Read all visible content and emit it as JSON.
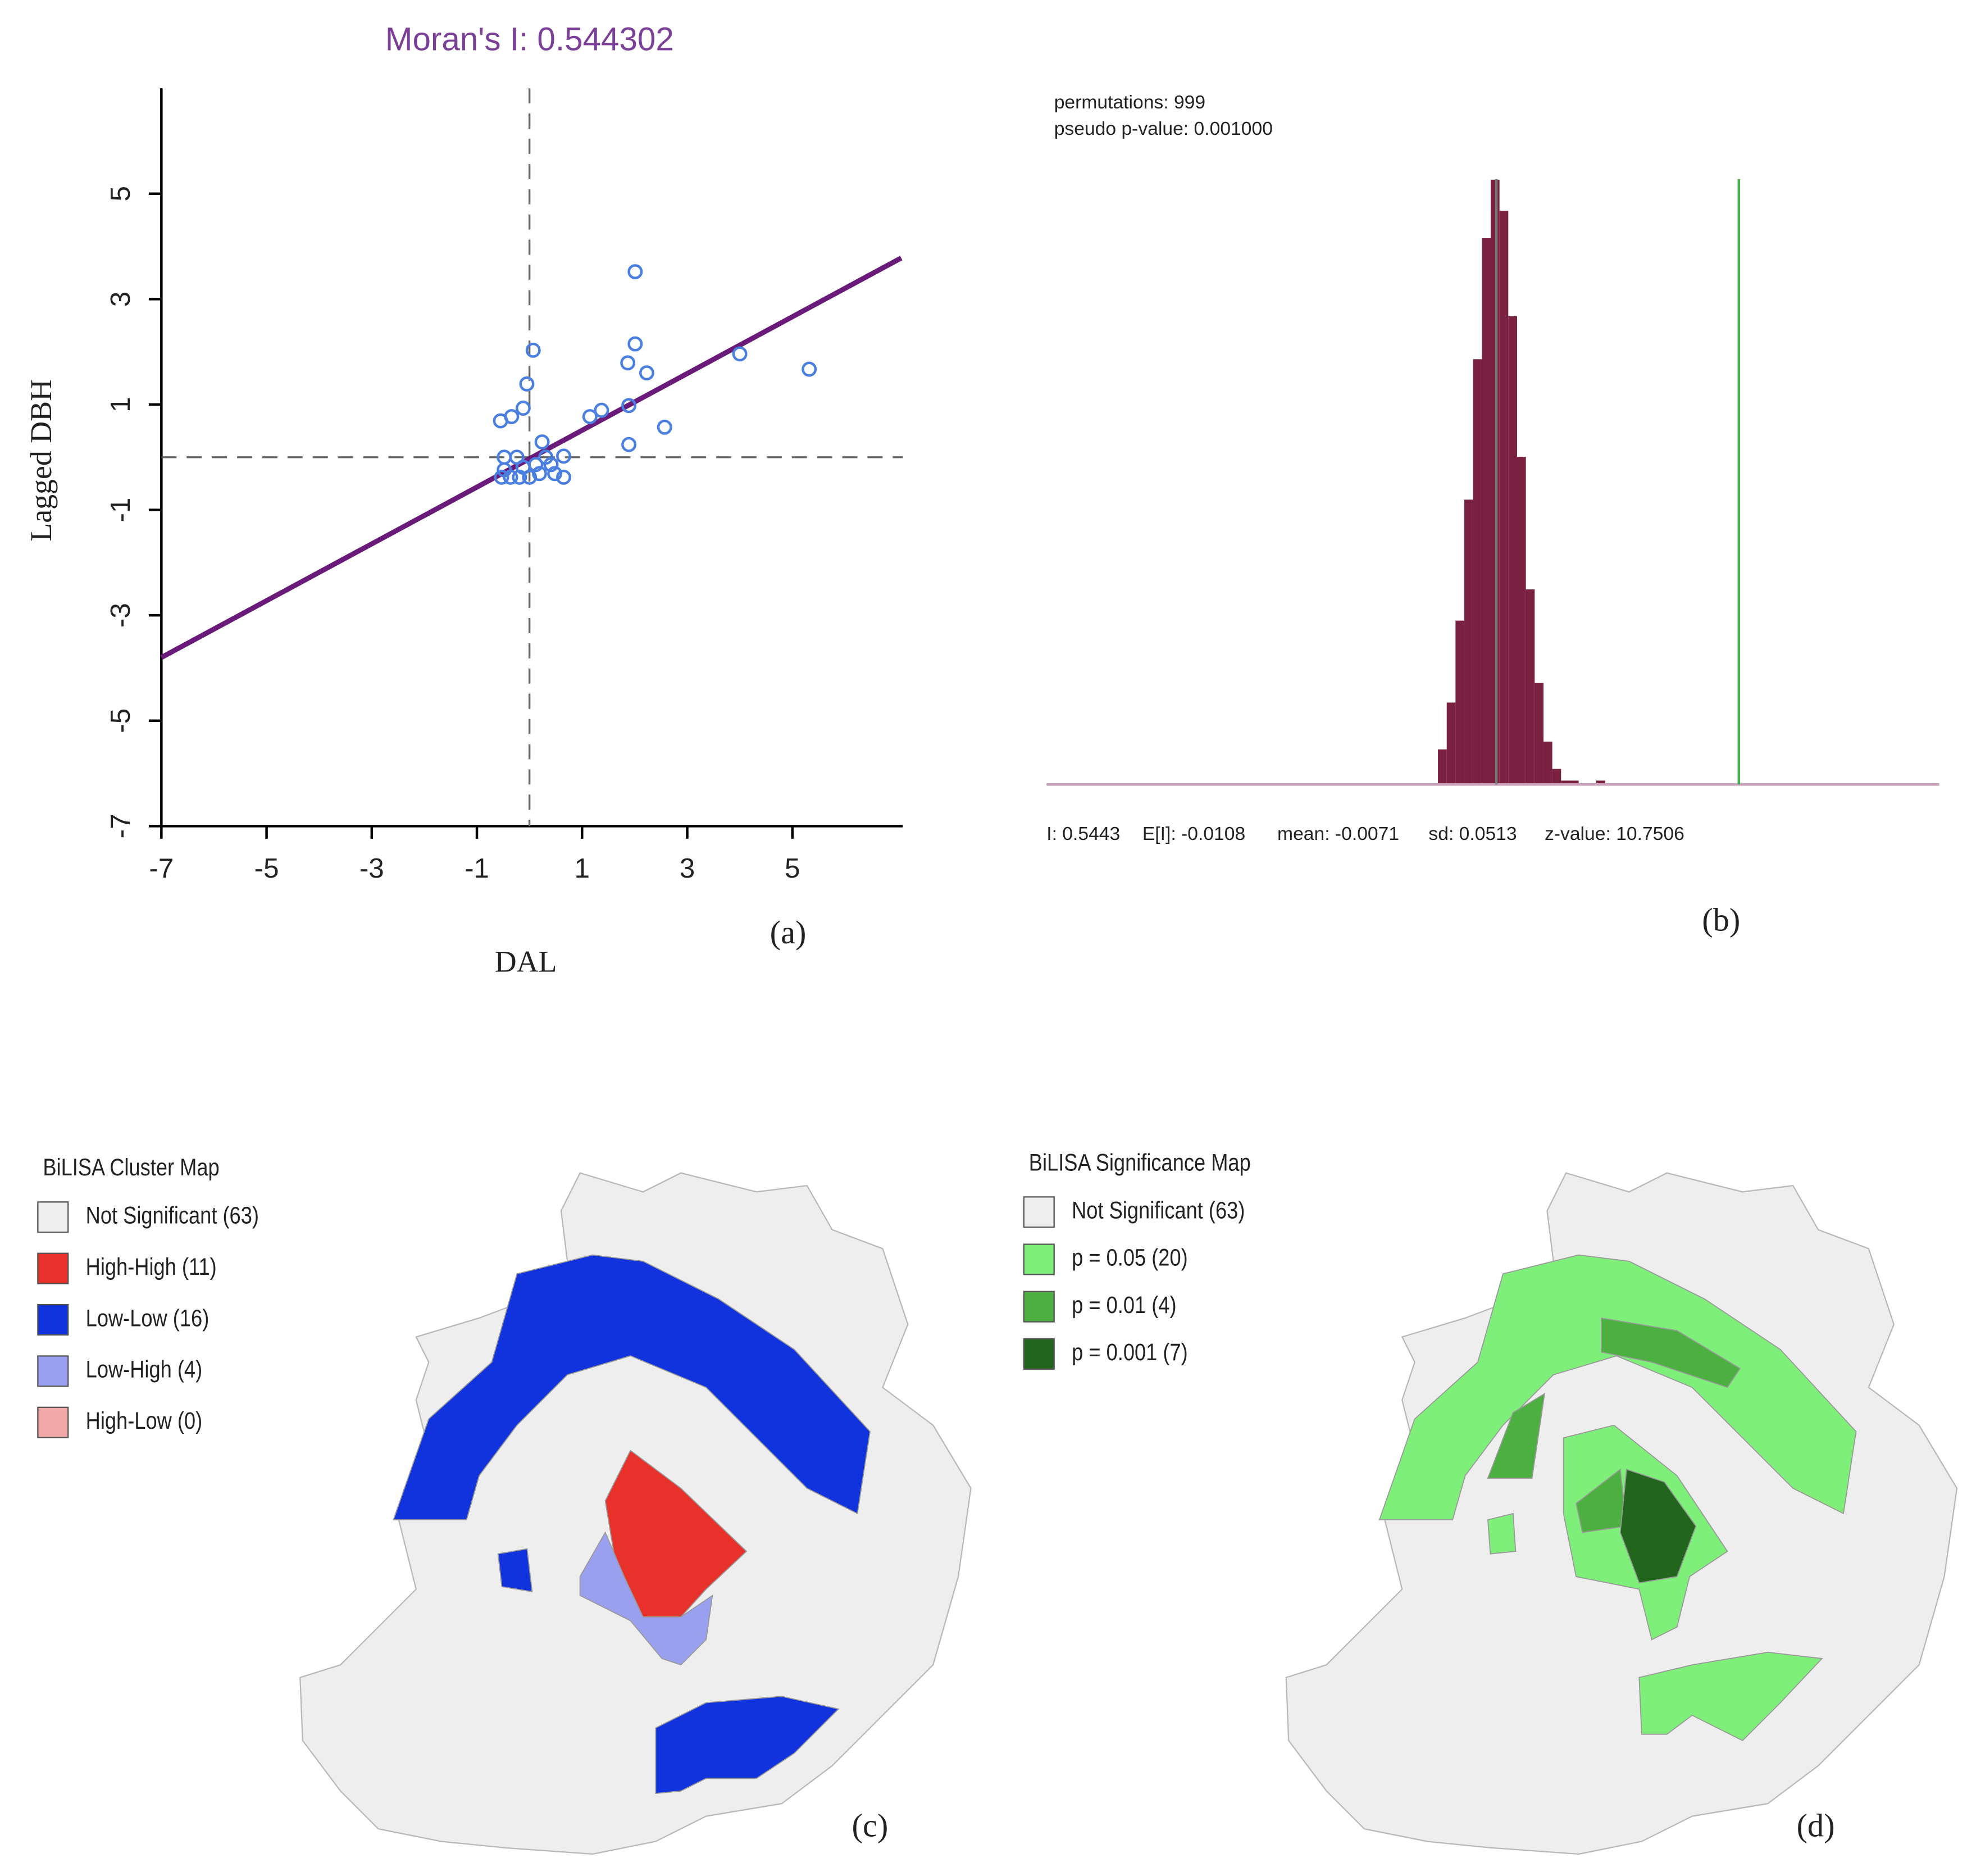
{
  "chart_data": [
    {
      "type": "scatter",
      "title": "Moran's I: 0.544302",
      "title_color": "#7b3f98",
      "xlabel": "DAL",
      "ylabel": "Lagged DBH",
      "panel_label": "(a)",
      "xlim": [
        -7,
        7.1
      ],
      "ylim": [
        -7,
        7
      ],
      "xticks": [
        -7,
        -5,
        -3,
        -1,
        1,
        3,
        5
      ],
      "yticks": [
        -7,
        -5,
        -3,
        -1,
        1,
        3,
        5
      ],
      "color": "#4a7fe0",
      "line_color": "#6a1b7a",
      "x": [
        2.01,
        2.01,
        0.07,
        4.0,
        5.32,
        1.87,
        2.23,
        -0.05,
        1.37,
        1.15,
        1.89,
        2.57,
        -0.55,
        -0.34,
        -0.12,
        1.89,
        0.24,
        0.65,
        -0.48,
        -0.53,
        -0.36,
        -0.19,
        0,
        0.19,
        0.41,
        0.48,
        0.65,
        -0.24,
        -0.12,
        0.12,
        -0.48,
        0.31
      ],
      "y": [
        3.52,
        2.15,
        2.03,
        1.96,
        1.67,
        1.79,
        1.6,
        1.39,
        0.89,
        0.77,
        0.98,
        0.57,
        0.69,
        0.77,
        0.93,
        0.24,
        0.29,
        0.02,
        0,
        -0.38,
        -0.38,
        -0.38,
        -0.38,
        -0.31,
        -0.14,
        -0.31,
        -0.38,
        0,
        -0.19,
        -0.14,
        -0.24,
        0
      ],
      "fit": {
        "x": [
          -7,
          7.07
        ],
        "y": [
          -3.8,
          3.78
        ]
      }
    },
    {
      "type": "histogram",
      "panel_label": "(b)",
      "annotations": [
        "permutations: 999",
        "pseudo p-value: 0.001000"
      ],
      "stats": [
        "I: 0.5443",
        "E[I]: -0.0108",
        "mean: -0.0071",
        "sd: 0.0513",
        "z-value: 10.7506"
      ],
      "xlim": [
        -1.03,
        1.0
      ],
      "ylim": [
        0,
        160
      ],
      "color": "#7a2040",
      "baseline_color": "#c8a0b8",
      "bins": [
        -0.14,
        -0.12,
        -0.1,
        -0.08,
        -0.06,
        -0.04,
        -0.02,
        0,
        0.02,
        0.04,
        0.06,
        0.08,
        0.1,
        0.12,
        0.14,
        0.16,
        0.18,
        0.2,
        0.22,
        0.24,
        0.26
      ],
      "counts": [
        9,
        21,
        42,
        73,
        109,
        140,
        155,
        147,
        120,
        84,
        50,
        26,
        11,
        4,
        1,
        1,
        0,
        0,
        1,
        0
      ],
      "vlines": [
        {
          "value": -0.0071,
          "color": "#777777"
        },
        {
          "value": 0.5443,
          "color": "#4caf50"
        }
      ]
    }
  ],
  "maps": [
    {
      "legend_title": "BiLISA Cluster Map",
      "panel_label": "(c)",
      "legend": [
        {
          "label": "Not Significant (63)",
          "color": "#eeeeee"
        },
        {
          "label": "High-High (11)",
          "color": "#e8312a"
        },
        {
          "label": "Low-Low (16)",
          "color": "#1133dd"
        },
        {
          "label": "Low-High (4)",
          "color": "#9aa0f0"
        },
        {
          "label": "High-Low (0)",
          "color": "#f0a8a8"
        }
      ]
    },
    {
      "legend_title": "BiLISA Significance Map",
      "panel_label": "(d)",
      "legend": [
        {
          "label": "Not Significant (63)",
          "color": "#eeeeee"
        },
        {
          "label": "p = 0.05 (20)",
          "color": "#7ef07a"
        },
        {
          "label": "p = 0.01 (4)",
          "color": "#4cb040"
        },
        {
          "label": "p = 0.001 (7)",
          "color": "#22661e"
        }
      ]
    }
  ]
}
